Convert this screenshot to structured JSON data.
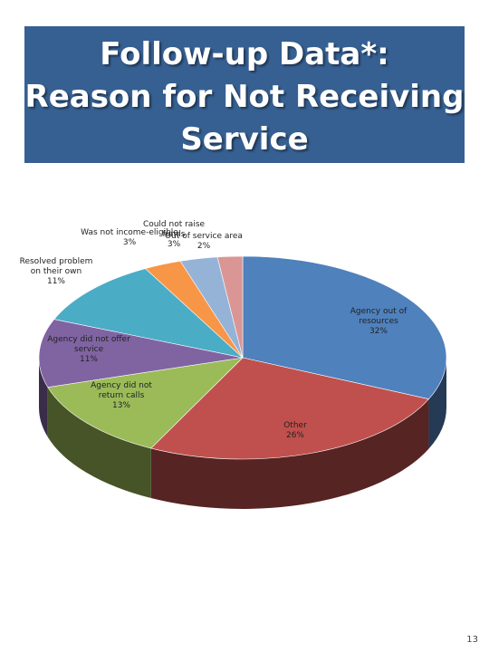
{
  "slide": {
    "title": "Follow-up Data*:\nReason for Not Receiving\nService",
    "page_number": "13"
  },
  "chart_data": {
    "type": "pie",
    "title": "",
    "three_d": true,
    "slices": [
      {
        "label": "Agency out of resources",
        "value": 32,
        "value_label": "32%",
        "color": "#4F81BD"
      },
      {
        "label": "Other",
        "value": 26,
        "value_label": "26%",
        "color": "#C0504D"
      },
      {
        "label": "Agency did not return calls",
        "value": 13,
        "value_label": "13%",
        "color": "#9BBB59"
      },
      {
        "label": "Agency did not offer service",
        "value": 11,
        "value_label": "11%",
        "color": "#8064A2"
      },
      {
        "label": "Resolved problem on their own",
        "value": 11,
        "value_label": "11%",
        "color": "#4BACC6"
      },
      {
        "label": "Was not income-eligible",
        "value": 3,
        "value_label": "3%",
        "color": "#F79646"
      },
      {
        "label": "Could not raise funds",
        "value": 3,
        "value_label": "3%",
        "color": "#95B3D7"
      },
      {
        "label": "Out of service area",
        "value": 2,
        "value_label": "2%",
        "color": "#D99694"
      }
    ]
  }
}
